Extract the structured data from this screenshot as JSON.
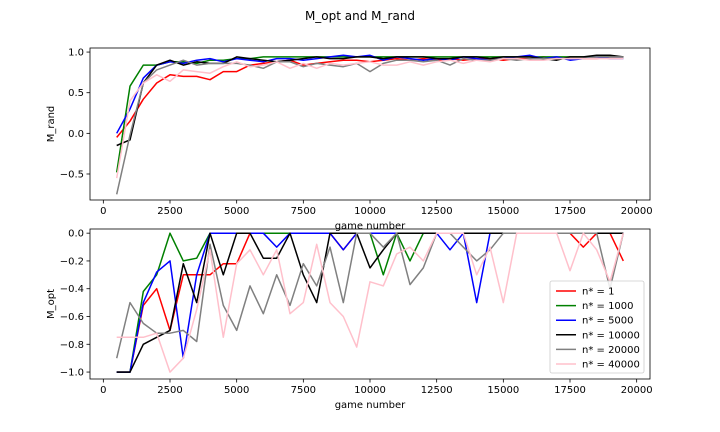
{
  "figure_title": "M_opt and M_rand",
  "colors": {
    "n1": "#ff0000",
    "n1000": "#008000",
    "n5000": "#0000ff",
    "n10000": "#000000",
    "n20000": "#808080",
    "n40000": "#ffc0cb"
  },
  "chart_data": [
    {
      "type": "line",
      "title": "",
      "xlabel": "game number",
      "ylabel": "M_rand",
      "xlim": [
        -500,
        20500
      ],
      "ylim": [
        -0.82,
        1.05
      ],
      "xticks": [
        0,
        2500,
        5000,
        7500,
        10000,
        12500,
        15000,
        17500,
        20000
      ],
      "xtick_labels": [
        "0",
        "2500",
        "5000",
        "7500",
        "10000",
        "12500",
        "15000",
        "17500",
        "20000"
      ],
      "yticks": [
        -0.5,
        0.0,
        0.5,
        1.0
      ],
      "ytick_labels": [
        "−0.5",
        "0.0",
        "0.5",
        "1.0"
      ],
      "x": [
        500,
        1000,
        1500,
        2000,
        2500,
        3000,
        3500,
        4000,
        4500,
        5000,
        5500,
        6000,
        6500,
        7000,
        7500,
        8000,
        8500,
        9000,
        9500,
        10000,
        10500,
        11000,
        11500,
        12000,
        12500,
        13000,
        13500,
        14000,
        14500,
        15000,
        15500,
        16000,
        16500,
        17000,
        17500,
        18000,
        18500,
        19000,
        19500
      ],
      "series": [
        {
          "name": "n* = 1",
          "color_key": "n1",
          "values": [
            -0.05,
            0.15,
            0.42,
            0.62,
            0.72,
            0.7,
            0.7,
            0.66,
            0.76,
            0.76,
            0.84,
            0.86,
            0.88,
            0.9,
            0.84,
            0.86,
            0.88,
            0.9,
            0.9,
            0.88,
            0.9,
            0.92,
            0.9,
            0.92,
            0.9,
            0.92,
            0.9,
            0.92,
            0.92,
            0.9,
            0.92,
            0.92,
            0.94,
            0.92,
            0.92,
            0.92,
            0.92,
            0.94,
            0.94
          ]
        },
        {
          "name": "n* = 1000",
          "color_key": "n1000",
          "values": [
            -0.48,
            0.58,
            0.84,
            0.84,
            0.88,
            0.88,
            0.86,
            0.9,
            0.9,
            0.92,
            0.92,
            0.94,
            0.94,
            0.94,
            0.94,
            0.94,
            0.94,
            0.94,
            0.94,
            0.94,
            0.94,
            0.94,
            0.94,
            0.94,
            0.94,
            0.94,
            0.94,
            0.94,
            0.94,
            0.94,
            0.94,
            0.94,
            0.94,
            0.94,
            0.94,
            0.94,
            0.94,
            0.94,
            0.94
          ]
        },
        {
          "name": "n* = 5000",
          "color_key": "n5000",
          "values": [
            0.0,
            0.3,
            0.68,
            0.84,
            0.88,
            0.86,
            0.9,
            0.92,
            0.88,
            0.92,
            0.9,
            0.88,
            0.92,
            0.92,
            0.9,
            0.92,
            0.94,
            0.96,
            0.94,
            0.96,
            0.9,
            0.94,
            0.92,
            0.9,
            0.92,
            0.9,
            0.94,
            0.92,
            0.9,
            0.92,
            0.94,
            0.96,
            0.92,
            0.94,
            0.9,
            0.92,
            0.94,
            0.92,
            0.92
          ]
        },
        {
          "name": "n* = 10000",
          "color_key": "n10000",
          "values": [
            -0.15,
            -0.08,
            0.62,
            0.84,
            0.9,
            0.84,
            0.88,
            0.86,
            0.86,
            0.94,
            0.92,
            0.9,
            0.88,
            0.9,
            0.92,
            0.94,
            0.92,
            0.92,
            0.94,
            0.94,
            0.92,
            0.94,
            0.94,
            0.94,
            0.92,
            0.92,
            0.94,
            0.94,
            0.92,
            0.94,
            0.94,
            0.94,
            0.92,
            0.9,
            0.94,
            0.94,
            0.96,
            0.96,
            0.94
          ]
        },
        {
          "name": "n* = 20000",
          "color_key": "n20000",
          "values": [
            -0.75,
            -0.02,
            0.62,
            0.78,
            0.84,
            0.9,
            0.84,
            0.86,
            0.86,
            0.86,
            0.84,
            0.8,
            0.88,
            0.88,
            0.82,
            0.86,
            0.84,
            0.82,
            0.86,
            0.76,
            0.86,
            0.9,
            0.9,
            0.88,
            0.9,
            0.84,
            0.92,
            0.9,
            0.9,
            0.92,
            0.9,
            0.92,
            0.92,
            0.92,
            0.92,
            0.92,
            0.94,
            0.94,
            0.94
          ]
        },
        {
          "name": "n* = 40000",
          "color_key": "n40000",
          "values": [
            -0.55,
            0.4,
            0.62,
            0.72,
            0.64,
            0.78,
            0.76,
            0.74,
            0.82,
            0.88,
            0.82,
            0.84,
            0.88,
            0.8,
            0.86,
            0.8,
            0.86,
            0.84,
            0.86,
            0.88,
            0.84,
            0.84,
            0.88,
            0.84,
            0.88,
            0.9,
            0.86,
            0.9,
            0.88,
            0.92,
            0.92,
            0.9,
            0.9,
            0.92,
            0.92,
            0.92,
            0.92,
            0.92,
            0.92
          ]
        }
      ]
    },
    {
      "type": "line",
      "title": "",
      "xlabel": "game number",
      "ylabel": "M_opt",
      "xlim": [
        -500,
        20500
      ],
      "ylim": [
        -1.05,
        0.03
      ],
      "xticks": [
        0,
        2500,
        5000,
        7500,
        10000,
        12500,
        15000,
        17500,
        20000
      ],
      "xtick_labels": [
        "0",
        "2500",
        "5000",
        "7500",
        "10000",
        "12500",
        "15000",
        "17500",
        "20000"
      ],
      "yticks": [
        -1.0,
        -0.8,
        -0.6,
        -0.4,
        -0.2,
        0.0
      ],
      "ytick_labels": [
        "−1.0",
        "−0.8",
        "−0.6",
        "−0.4",
        "−0.2",
        "0.0"
      ],
      "legend_position": "lower-right",
      "x": [
        500,
        1000,
        1500,
        2000,
        2500,
        3000,
        3500,
        4000,
        4500,
        5000,
        5500,
        6000,
        6500,
        7000,
        7500,
        8000,
        8500,
        9000,
        9500,
        10000,
        10500,
        11000,
        11500,
        12000,
        12500,
        13000,
        13500,
        14000,
        14500,
        15000,
        15500,
        16000,
        16500,
        17000,
        17500,
        18000,
        18500,
        19000,
        19500
      ],
      "series": [
        {
          "name": "n* = 1",
          "color_key": "n1",
          "values": [
            -1.0,
            -1.0,
            -0.52,
            -0.4,
            -0.7,
            -0.3,
            -0.3,
            -0.3,
            -0.22,
            -0.22,
            0.0,
            0.0,
            0.0,
            0.0,
            0.0,
            0.0,
            0.0,
            -0.12,
            0.0,
            0.0,
            0.0,
            0.0,
            0.0,
            0.0,
            0.0,
            0.0,
            0.0,
            0.0,
            0.0,
            0.0,
            0.0,
            0.0,
            0.0,
            0.0,
            0.0,
            -0.1,
            0.0,
            0.0,
            -0.2
          ]
        },
        {
          "name": "n* = 1000",
          "color_key": "n1000",
          "values": [
            -1.0,
            -1.0,
            -0.42,
            -0.3,
            0.0,
            -0.2,
            -0.18,
            0.0,
            0.0,
            0.0,
            0.0,
            0.0,
            0.0,
            0.0,
            0.0,
            0.0,
            0.0,
            0.0,
            0.0,
            0.0,
            -0.3,
            0.0,
            -0.2,
            0.0,
            0.0,
            0.0,
            0.0,
            0.0,
            0.0,
            0.0,
            0.0,
            0.0,
            0.0,
            0.0,
            0.0,
            0.0,
            0.0,
            0.0,
            0.0
          ]
        },
        {
          "name": "n* = 5000",
          "color_key": "n5000",
          "values": [
            -1.0,
            -1.0,
            -0.5,
            -0.28,
            -0.2,
            -0.9,
            -0.3,
            0.0,
            0.0,
            0.0,
            0.0,
            0.0,
            -0.1,
            0.0,
            0.0,
            0.0,
            0.0,
            -0.12,
            0.0,
            0.0,
            0.0,
            0.0,
            0.0,
            0.0,
            0.0,
            -0.12,
            0.0,
            -0.5,
            0.0,
            0.0,
            0.0,
            0.0,
            0.0,
            0.0,
            0.0,
            0.0,
            0.0,
            0.0,
            0.0
          ]
        },
        {
          "name": "n* = 10000",
          "color_key": "n10000",
          "values": [
            -1.0,
            -1.0,
            -0.8,
            -0.75,
            -0.7,
            -0.22,
            -0.5,
            0.0,
            -0.3,
            0.0,
            0.0,
            -0.18,
            -0.18,
            0.0,
            -0.3,
            -0.5,
            0.0,
            0.0,
            0.0,
            -0.25,
            -0.12,
            0.0,
            0.0,
            0.0,
            0.0,
            0.0,
            0.0,
            0.0,
            0.0,
            0.0,
            0.0,
            0.0,
            0.0,
            0.0,
            0.0,
            0.0,
            0.0,
            0.0,
            0.0
          ]
        },
        {
          "name": "n* = 20000",
          "color_key": "n20000",
          "values": [
            -0.9,
            -0.5,
            -0.65,
            -0.72,
            -0.72,
            -0.7,
            -0.78,
            -0.08,
            -0.52,
            -0.7,
            -0.38,
            -0.58,
            -0.3,
            -0.52,
            -0.22,
            -0.38,
            -0.1,
            -0.5,
            0.0,
            0.0,
            -0.1,
            0.0,
            -0.37,
            -0.25,
            0.0,
            0.0,
            -0.1,
            -0.2,
            -0.12,
            0.0,
            0.0,
            0.0,
            0.0,
            0.0,
            0.0,
            0.0,
            0.0,
            -0.4,
            0.0
          ]
        },
        {
          "name": "n* = 40000",
          "color_key": "n40000",
          "values": [
            -0.75,
            -0.75,
            -0.75,
            -0.72,
            -1.0,
            -0.9,
            -0.55,
            -0.12,
            -0.75,
            -0.22,
            -0.12,
            -0.3,
            -0.12,
            -0.58,
            -0.5,
            -0.08,
            -0.5,
            -0.6,
            -0.82,
            -0.35,
            -0.38,
            -0.15,
            -0.1,
            -0.2,
            0.0,
            0.0,
            0.0,
            -0.3,
            -0.1,
            -0.5,
            0.0,
            0.0,
            0.0,
            0.0,
            -0.27,
            0.0,
            -0.12,
            -0.35,
            0.0
          ]
        }
      ]
    }
  ]
}
